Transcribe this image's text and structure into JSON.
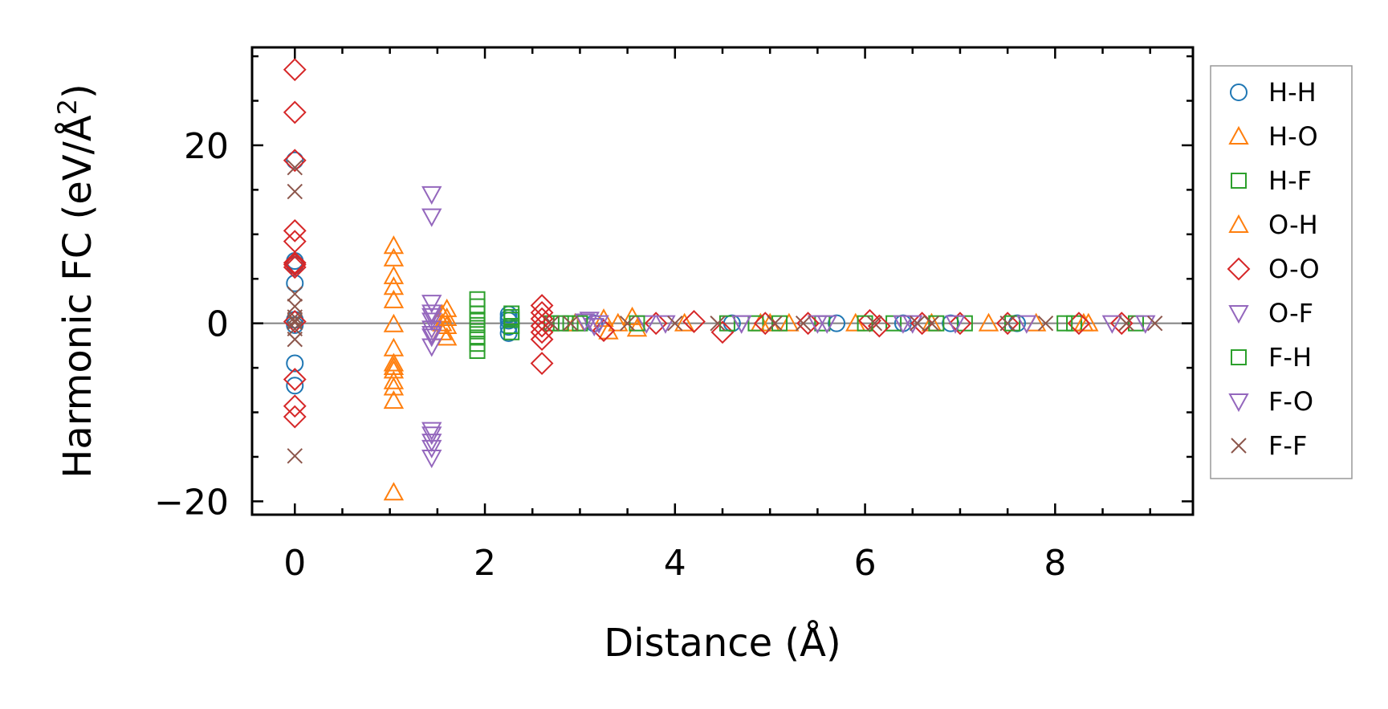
{
  "chart_data": {
    "type": "scatter",
    "xlabel": "Distance (Å)",
    "ylabel": "Harmonic FC (eV/Å²)",
    "ylabel_main": "Harmonic FC (eV/Å",
    "ylabel_sup": "2",
    "ylabel_close": ")",
    "xlim": [
      -0.45,
      9.45
    ],
    "ylim": [
      -21.5,
      31
    ],
    "xticks": [
      0,
      2,
      4,
      6,
      8
    ],
    "xtick_labels": [
      "0",
      "2",
      "4",
      "6",
      "8"
    ],
    "yticks": [
      -20,
      0,
      20
    ],
    "ytick_labels": [
      "−20",
      "0",
      "20"
    ],
    "zero_line": true,
    "legend_position": "outside-right-top",
    "series": [
      {
        "name": "H-H",
        "marker": "circle",
        "color": "#1f77b4",
        "x": [
          0,
          0,
          0,
          0,
          0,
          0,
          0,
          0,
          0,
          2.25,
          2.25,
          2.25,
          2.25,
          2.25,
          3.15,
          4.6,
          5.7,
          6.4,
          6.9,
          7.6
        ],
        "y": [
          7.0,
          6.6,
          4.5,
          0.4,
          -0.2,
          -4.5,
          -7.0,
          18.3,
          6.5,
          1.0,
          0.3,
          -0.4,
          -1.1,
          0.6,
          0,
          0,
          0,
          0,
          0,
          0
        ]
      },
      {
        "name": "H-O",
        "marker": "triangle-up",
        "color": "#ff7f0e",
        "x": [
          1.04,
          1.04,
          1.04,
          1.04,
          1.04,
          1.04,
          1.04,
          1.04,
          1.04,
          1.04,
          1.04,
          1.04,
          1.04,
          1.04,
          1.6,
          1.6,
          1.6,
          1.6,
          3.25,
          3.3,
          3.55,
          3.6,
          4.9,
          5.2,
          7.3,
          8.35
        ],
        "y": [
          8.7,
          7.3,
          5.3,
          4.1,
          2.6,
          -0.1,
          -2.8,
          -4.5,
          -5.3,
          -6.5,
          -7.2,
          -8.7,
          -19.0,
          -4.9,
          1.6,
          0.6,
          -0.3,
          -1.6,
          0.5,
          -0.9,
          0.7,
          -0.6,
          0,
          0,
          0,
          0
        ]
      },
      {
        "name": "H-F",
        "marker": "square",
        "color": "#2ca02c",
        "x": [
          1.92,
          1.92,
          1.92,
          1.92,
          1.92,
          1.92,
          1.92,
          1.92,
          1.92,
          2.28,
          2.28,
          2.28,
          2.28,
          2.28,
          2.7,
          2.9,
          4.85,
          5.55,
          6.3,
          7.05,
          8.2,
          8.85
        ],
        "y": [
          2.7,
          1.9,
          1.1,
          0.4,
          -0.2,
          -0.9,
          -1.6,
          -2.3,
          -3.1,
          1.1,
          0.4,
          -0.3,
          -1.0,
          0.7,
          0,
          0,
          0,
          0,
          0,
          0,
          0,
          0
        ]
      },
      {
        "name": "O-H",
        "marker": "triangle-up",
        "color": "#ff7f0e",
        "x": [
          1.55,
          1.55,
          1.55,
          2.95,
          3.4,
          4.1,
          5.0,
          5.9,
          6.7,
          7.8,
          8.3
        ],
        "y": [
          1.0,
          0.0,
          -1.0,
          0,
          0,
          0,
          0,
          0,
          0,
          0,
          0
        ]
      },
      {
        "name": "O-O",
        "marker": "diamond",
        "color": "#d62728",
        "x": [
          0,
          0,
          0,
          0,
          0,
          0,
          0,
          0,
          0,
          0,
          0,
          0,
          2.6,
          2.6,
          2.6,
          2.6,
          2.6,
          2.6,
          2.6,
          3.25,
          3.8,
          4.2,
          4.5,
          4.95,
          5.4,
          6.05,
          6.15,
          6.6,
          7.0,
          7.5,
          8.25,
          8.7
        ],
        "y": [
          28.5,
          23.7,
          18.3,
          10.4,
          9.2,
          6.6,
          6.3,
          0.2,
          -6.3,
          -9.3,
          -10.5,
          6.8,
          2.0,
          1.2,
          0.5,
          -0.3,
          -1.0,
          -1.8,
          -4.5,
          -0.8,
          0,
          0.2,
          -1.0,
          0,
          0,
          0.3,
          -0.3,
          0,
          0,
          0,
          0,
          0
        ]
      },
      {
        "name": "O-F",
        "marker": "triangle-down",
        "color": "#9467bd",
        "x": [
          1.44,
          1.44,
          1.44,
          1.44,
          1.44,
          1.44,
          1.44,
          1.44,
          1.44,
          1.44,
          1.44,
          3.1,
          3.15,
          3.7,
          4.7,
          5.6,
          6.5
        ],
        "y": [
          14.5,
          12.0,
          2.3,
          1.2,
          0.3,
          -0.6,
          -1.5,
          -2.6,
          -12.0,
          -13.3,
          -15.1,
          0.4,
          -0.3,
          0,
          0,
          0,
          0
        ]
      },
      {
        "name": "F-H",
        "marker": "square",
        "color": "#2ca02c",
        "x": [
          2.8,
          3.0,
          3.6,
          4.55,
          5.1,
          6.0,
          6.75,
          7.55,
          8.1
        ],
        "y": [
          0,
          0,
          0,
          0,
          0,
          0,
          0,
          0,
          0
        ]
      },
      {
        "name": "F-O",
        "marker": "triangle-down",
        "color": "#9467bd",
        "x": [
          1.44,
          1.44,
          1.44,
          1.44,
          3.05,
          3.2,
          3.9,
          4.7,
          5.5,
          6.4,
          6.95,
          7.7,
          8.6,
          8.95
        ],
        "y": [
          -14.0,
          -12.5,
          0.8,
          -1.2,
          0.2,
          0,
          0,
          0,
          0,
          0,
          0,
          0,
          0,
          0
        ]
      },
      {
        "name": "F-F",
        "marker": "x",
        "color": "#8c564b",
        "x": [
          0,
          0,
          0,
          0,
          0,
          0,
          0,
          0,
          0,
          0,
          2.7,
          2.9,
          3.5,
          4.0,
          4.45,
          5.05,
          5.35,
          6.1,
          6.55,
          6.7,
          7.5,
          7.9,
          8.75,
          9.05
        ],
        "y": [
          17.5,
          14.8,
          3.3,
          1.9,
          0.7,
          0.1,
          -0.6,
          -1.8,
          -14.9,
          0.3,
          0,
          0,
          0,
          0,
          0,
          0,
          0,
          0,
          0,
          0,
          0,
          0,
          0,
          0
        ]
      }
    ]
  }
}
